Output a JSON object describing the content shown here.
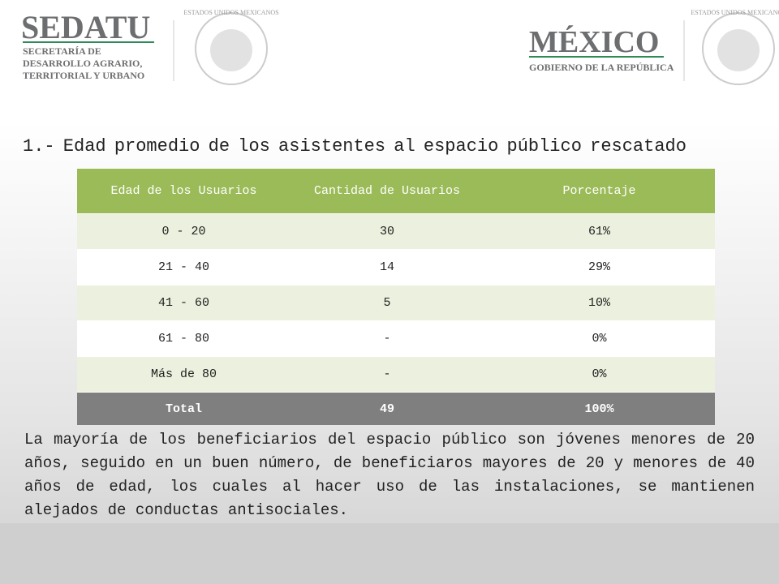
{
  "header": {
    "left_logo": {
      "title": "SEDATU",
      "subtitle": [
        "SECRETARÍA DE",
        "DESARROLLO AGRARIO,",
        "TERRITORIAL Y URBANO"
      ]
    },
    "emblem_text": "ESTADOS UNIDOS MEXICANOS",
    "right_logo": {
      "title": "MÉXICO",
      "subtitle": "GOBIERNO DE LA REPÚBLICA"
    }
  },
  "title": "1.- Edad promedio de los asistentes al espacio público rescatado",
  "table": {
    "columns": [
      "Edad de los Usuarios",
      "Cantidad de Usuarios",
      "Porcentaje"
    ],
    "rows": [
      [
        "0 - 20",
        "30",
        "61%"
      ],
      [
        "21 - 40",
        "14",
        "29%"
      ],
      [
        "41 - 60",
        "5",
        "10%"
      ],
      [
        "61 - 80",
        "-",
        "0%"
      ],
      [
        "Más de  80",
        "-",
        "0%"
      ]
    ],
    "total": [
      "Total",
      "49",
      "100%"
    ]
  },
  "paragraph": "La mayoría de los beneficiarios del espacio público son jóvenes menores de 20 años, seguido en un buen número, de beneficiaros mayores de 20 y menores de 40 años de edad, los cuales al hacer uso de las instalaciones, se mantienen alejados de conductas antisociales."
}
